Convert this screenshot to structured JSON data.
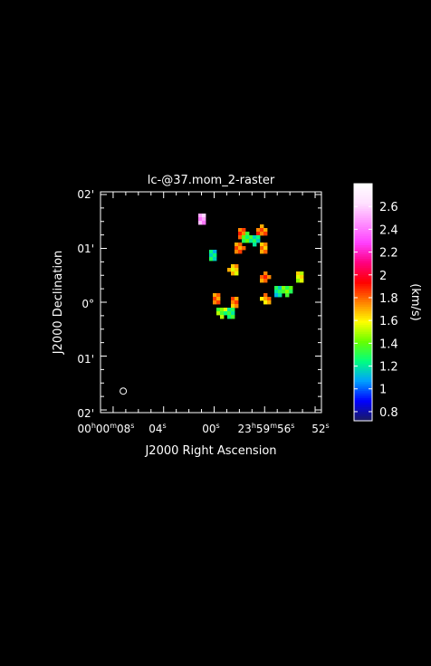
{
  "chart_data": {
    "type": "heatmap",
    "title": "lc-@37.mom_2-raster",
    "xlabel": "J2000 Right Ascension",
    "ylabel": "J2000 Declination",
    "x_ticks": [
      {
        "label": "00h00m08s",
        "ra_sec_offset": 8
      },
      {
        "label": "04s",
        "ra_sec_offset": 4
      },
      {
        "label": "00s",
        "ra_sec_offset": 0
      },
      {
        "label": "23h59m56s",
        "ra_sec_offset": -4
      },
      {
        "label": "52s",
        "ra_sec_offset": -8
      }
    ],
    "x_tick_text": {
      "t0_main": "00",
      "t0_h": "h",
      "t0_mid": "00",
      "t0_m": "m",
      "t0_tail": "08",
      "t0_s": "s",
      "t1_main": "04",
      "t1_s": "s",
      "t2_main": "00",
      "t2_s": "s",
      "t3_main": "23",
      "t3_h": "h",
      "t3_mid": "59",
      "t3_m": "m",
      "t3_tail": "56",
      "t3_s": "s",
      "t4_main": "52",
      "t4_s": "s"
    },
    "y_ticks": [
      "02'",
      "01'",
      "0°",
      "01'",
      "02'"
    ],
    "colorbar": {
      "label": "(km/s)",
      "range": [
        0.72,
        2.8
      ],
      "ticks": [
        "0.8",
        "1",
        "1.2",
        "1.4",
        "1.6",
        "1.8",
        "2",
        "2.2",
        "2.4",
        "2.6"
      ],
      "tick_values": [
        0.8,
        1.0,
        1.2,
        1.4,
        1.6,
        1.8,
        2.0,
        2.2,
        2.4,
        2.6
      ],
      "colormap": [
        "#1a1a60",
        "#0000ff",
        "#00a0ff",
        "#00ff80",
        "#66ff00",
        "#ffff00",
        "#ff8000",
        "#ff0000",
        "#ff0080",
        "#ff40ff",
        "#ff90ff",
        "#ffe0ff",
        "#ffffff"
      ]
    },
    "axis_ranges": {
      "ra_sec_offset": [
        9.0,
        -8.5
      ],
      "dec_arcmin": [
        -2.05,
        2.05
      ]
    },
    "grid": false,
    "beam_marker": {
      "ra_sec_offset": 7.2,
      "dec_arcmin": -1.65
    },
    "blobs": [
      {
        "ra_sec_offset": 1.0,
        "dec_arcmin": 1.56,
        "value": 2.5
      },
      {
        "ra_sec_offset": -2.2,
        "dec_arcmin": 1.3,
        "value": 1.8
      },
      {
        "ra_sec_offset": -2.0,
        "dec_arcmin": 1.0,
        "value": 1.75
      },
      {
        "ra_sec_offset": -3.8,
        "dec_arcmin": 1.32,
        "value": 1.8
      },
      {
        "ra_sec_offset": -3.9,
        "dec_arcmin": 0.98,
        "value": 1.75
      },
      {
        "ra_sec_offset": -2.6,
        "dec_arcmin": 1.2,
        "value": 1.3
      },
      {
        "ra_sec_offset": -3.2,
        "dec_arcmin": 1.15,
        "value": 1.25
      },
      {
        "ra_sec_offset": -1.5,
        "dec_arcmin": 0.6,
        "value": 1.65
      },
      {
        "ra_sec_offset": -4.0,
        "dec_arcmin": 0.45,
        "value": 1.8
      },
      {
        "ra_sec_offset": -4.1,
        "dec_arcmin": 0.05,
        "value": 1.7
      },
      {
        "ra_sec_offset": -5.1,
        "dec_arcmin": 0.22,
        "value": 1.2
      },
      {
        "ra_sec_offset": -5.8,
        "dec_arcmin": 0.22,
        "value": 1.4
      },
      {
        "ra_sec_offset": -1.6,
        "dec_arcmin": -0.02,
        "value": 1.75
      },
      {
        "ra_sec_offset": -0.2,
        "dec_arcmin": 0.05,
        "value": 1.75
      },
      {
        "ra_sec_offset": -1.2,
        "dec_arcmin": -0.2,
        "value": 1.25
      },
      {
        "ra_sec_offset": -0.6,
        "dec_arcmin": -0.18,
        "value": 1.45
      },
      {
        "ra_sec_offset": -6.8,
        "dec_arcmin": 0.45,
        "value": 1.55
      },
      {
        "ra_sec_offset": 0.1,
        "dec_arcmin": 0.85,
        "value": 1.2
      }
    ]
  }
}
